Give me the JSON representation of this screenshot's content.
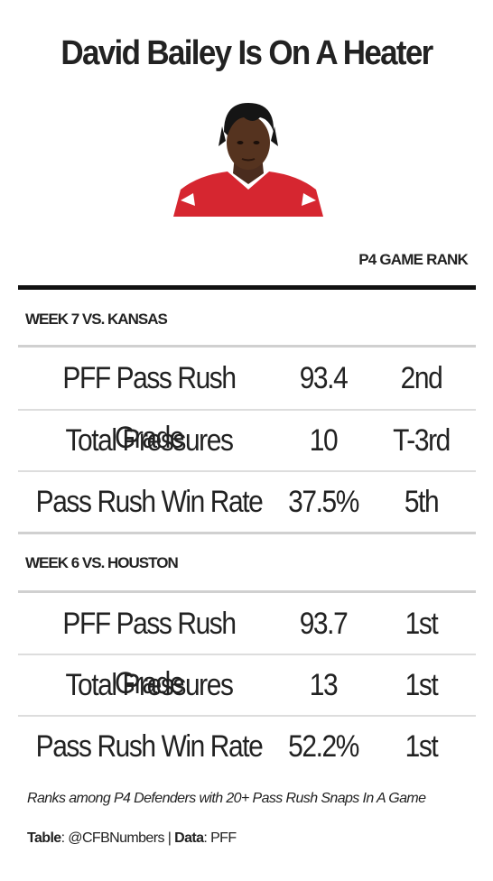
{
  "title": "David Bailey Is On A Heater",
  "column_header": "P4 GAME RANK",
  "footnote": "Ranks among P4 Defenders with 20+ Pass Rush Snaps In A Game",
  "credit": {
    "table_label": "Table",
    "table_value": ": @CFBNumbers | ",
    "data_label": "Data",
    "data_value": ": PFF"
  },
  "colors": {
    "jersey": "#d62630",
    "rule": "#111111",
    "text": "#222222"
  },
  "chart_data": {
    "type": "table",
    "columns": [
      "",
      "",
      "P4 GAME RANK"
    ],
    "sections": [
      {
        "label": "WEEK 7 VS. KANSAS",
        "rows": [
          {
            "stat": "PFF Pass Rush Grade",
            "value": "93.4",
            "rank": "2nd"
          },
          {
            "stat": "Total Pressures",
            "value": "10",
            "rank": "T-3rd"
          },
          {
            "stat": "Pass Rush Win Rate",
            "value": "37.5%",
            "rank": "5th"
          }
        ]
      },
      {
        "label": "WEEK 6 VS. HOUSTON",
        "rows": [
          {
            "stat": "PFF Pass Rush Grade",
            "value": "93.7",
            "rank": "1st"
          },
          {
            "stat": "Total Pressures",
            "value": "13",
            "rank": "1st"
          },
          {
            "stat": "Pass Rush Win Rate",
            "value": "52.2%",
            "rank": "1st"
          }
        ]
      }
    ]
  }
}
